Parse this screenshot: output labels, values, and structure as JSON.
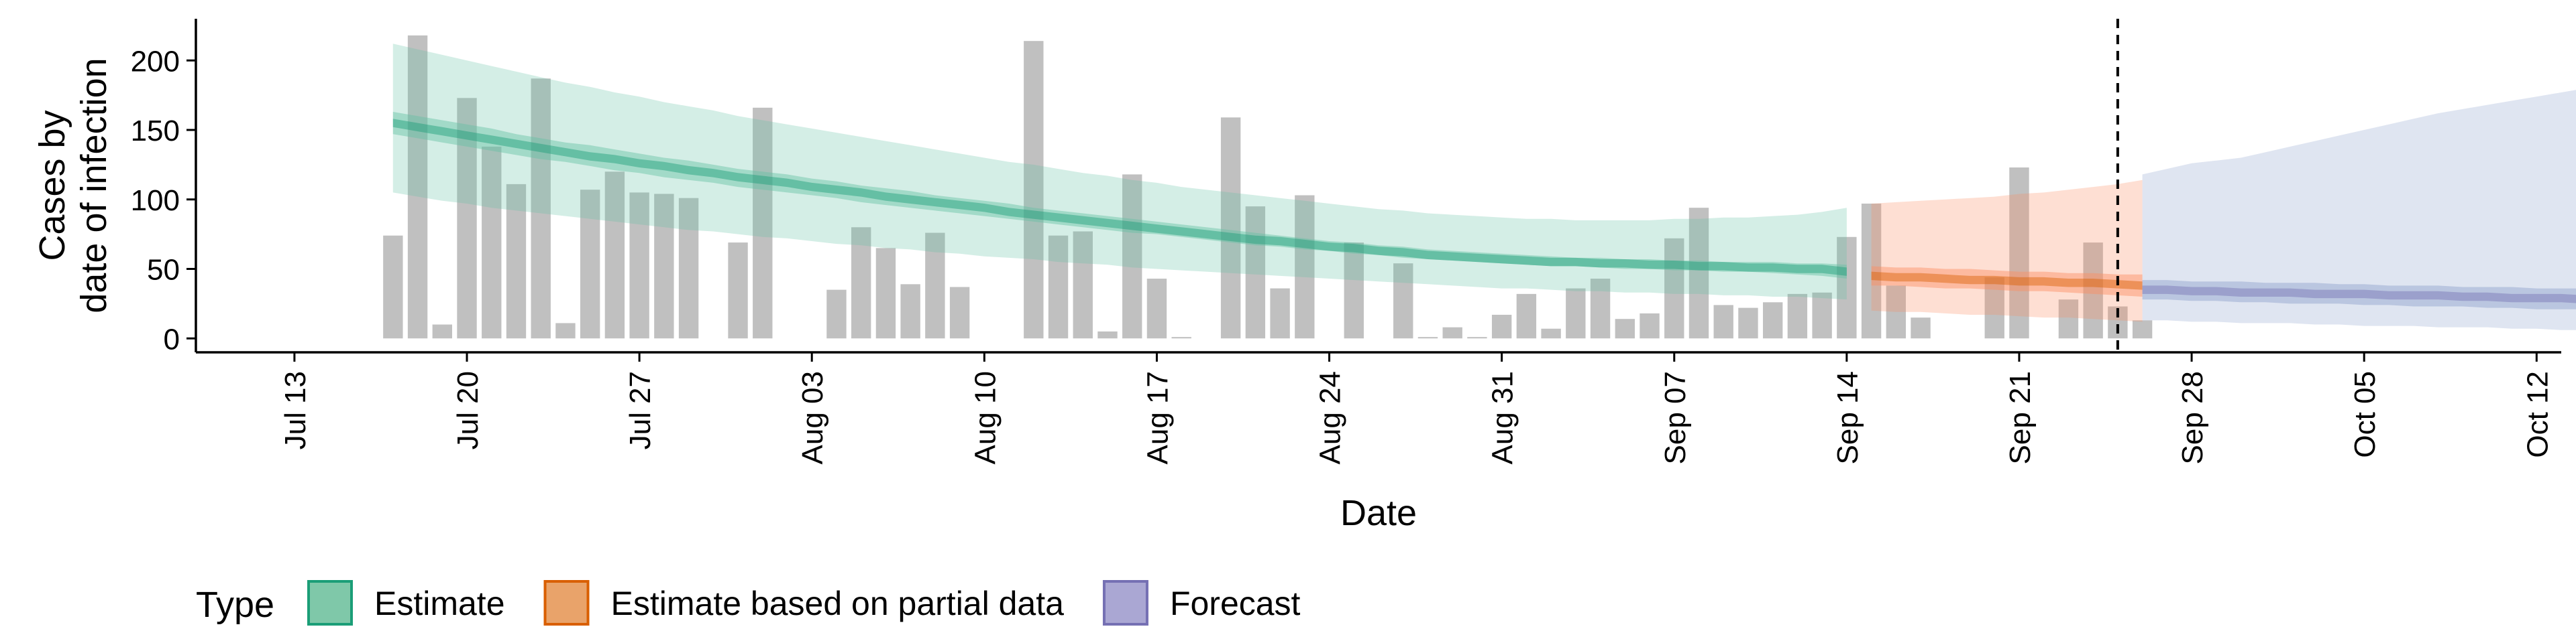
{
  "chart_data": {
    "type": "bar",
    "xlabel": "Date",
    "ylabel": [
      "Cases by",
      "date of infection"
    ],
    "ylim": [
      -10,
      230
    ],
    "y_ticks": [
      0,
      50,
      100,
      150,
      200
    ],
    "x_range": [
      "2020-07-09",
      "2020-10-13"
    ],
    "x_ticks": [
      {
        "date": "2020-07-13",
        "label": "Jul 13"
      },
      {
        "date": "2020-07-20",
        "label": "Jul 20"
      },
      {
        "date": "2020-07-27",
        "label": "Jul 27"
      },
      {
        "date": "2020-08-03",
        "label": "Aug 03"
      },
      {
        "date": "2020-08-10",
        "label": "Aug 10"
      },
      {
        "date": "2020-08-17",
        "label": "Aug 17"
      },
      {
        "date": "2020-08-24",
        "label": "Aug 24"
      },
      {
        "date": "2020-08-31",
        "label": "Aug 31"
      },
      {
        "date": "2020-09-07",
        "label": "Sep 07"
      },
      {
        "date": "2020-09-14",
        "label": "Sep 14"
      },
      {
        "date": "2020-09-21",
        "label": "Sep 21"
      },
      {
        "date": "2020-09-28",
        "label": "Sep 28"
      },
      {
        "date": "2020-10-05",
        "label": "Oct 05"
      },
      {
        "date": "2020-10-12",
        "label": "Oct 12"
      }
    ],
    "grid": false,
    "bars": {
      "start_date": "2020-07-17",
      "color": "#bdbdbd",
      "values": [
        74,
        218,
        10,
        173,
        138,
        111,
        187,
        11,
        107,
        120,
        105,
        104,
        101,
        0,
        69,
        166,
        0,
        0,
        35,
        80,
        65,
        39,
        76,
        37,
        0,
        0,
        214,
        74,
        77,
        5,
        118,
        43,
        1,
        0,
        159,
        95,
        36,
        103,
        0,
        69,
        0,
        54,
        1,
        8,
        1,
        17,
        32,
        7,
        36,
        43,
        14,
        18,
        72,
        94,
        24,
        22,
        26,
        32,
        33,
        73,
        97,
        38,
        15,
        0,
        0,
        44,
        123,
        0,
        28,
        69,
        23,
        13
      ]
    },
    "vertical_line": {
      "date": "2020-09-25",
      "style": "dashed"
    },
    "series": [
      {
        "name": "Estimate",
        "color": "#1b9e77",
        "fill": "#66c2a5",
        "start_date": "2020-07-17",
        "median": [
          155,
          152,
          149,
          146,
          143,
          140,
          137,
          134,
          131,
          129,
          126,
          124,
          121,
          119,
          116,
          114,
          112,
          109,
          107,
          105,
          102,
          100,
          98,
          96,
          94,
          91,
          89,
          87,
          85,
          83,
          81,
          79,
          77,
          75,
          73,
          71,
          70,
          68,
          66,
          65,
          63,
          62,
          60,
          59,
          58,
          57,
          56,
          55,
          55,
          54,
          54,
          53,
          53,
          52,
          52,
          51,
          51,
          50,
          50,
          48
        ],
        "inner_low": [
          147,
          144,
          141,
          138,
          135,
          132,
          129,
          127,
          124,
          121,
          119,
          116,
          114,
          112,
          109,
          107,
          105,
          103,
          101,
          98,
          96,
          94,
          92,
          90,
          88,
          86,
          84,
          82,
          80,
          78,
          76,
          75,
          73,
          71,
          69,
          67,
          66,
          64,
          63,
          61,
          60,
          58,
          57,
          56,
          55,
          54,
          53,
          52,
          52,
          51,
          50,
          50,
          49,
          49,
          48,
          48,
          47,
          46,
          45,
          43
        ],
        "inner_high": [
          163,
          160,
          157,
          154,
          151,
          147,
          144,
          141,
          139,
          136,
          133,
          130,
          128,
          125,
          122,
          120,
          118,
          115,
          113,
          110,
          108,
          106,
          103,
          101,
          99,
          97,
          94,
          92,
          90,
          88,
          86,
          84,
          82,
          80,
          78,
          76,
          74,
          72,
          70,
          69,
          67,
          66,
          64,
          63,
          62,
          61,
          60,
          59,
          58,
          58,
          57,
          57,
          56,
          56,
          55,
          55,
          55,
          54,
          54,
          53
        ],
        "outer_low": [
          105,
          102,
          99,
          97,
          94,
          92,
          90,
          88,
          86,
          84,
          82,
          80,
          78,
          77,
          75,
          73,
          72,
          70,
          68,
          67,
          65,
          64,
          62,
          61,
          59,
          58,
          57,
          55,
          54,
          53,
          51,
          50,
          49,
          48,
          47,
          46,
          45,
          44,
          43,
          42,
          41,
          40,
          39,
          38,
          37,
          36,
          36,
          35,
          34,
          34,
          33,
          33,
          32,
          32,
          31,
          31,
          30,
          30,
          29,
          28
        ],
        "outer_high": [
          212,
          208,
          204,
          200,
          196,
          192,
          188,
          184,
          181,
          177,
          174,
          170,
          167,
          164,
          160,
          157,
          154,
          151,
          148,
          145,
          142,
          139,
          136,
          133,
          130,
          127,
          125,
          122,
          119,
          117,
          114,
          112,
          109,
          107,
          105,
          103,
          101,
          99,
          97,
          95,
          93,
          92,
          90,
          89,
          88,
          87,
          86,
          86,
          85,
          85,
          85,
          85,
          86,
          86,
          87,
          87,
          88,
          89,
          91,
          94
        ]
      },
      {
        "name": "Estimate based on partial data",
        "color": "#d95f02",
        "fill": "#fc8d62",
        "start_date": "2020-09-15",
        "median": [
          45,
          44,
          44,
          43,
          42,
          42,
          41,
          41,
          40,
          40,
          39,
          38
        ],
        "inner_low": [
          38,
          38,
          37,
          36,
          36,
          35,
          34,
          34,
          33,
          32,
          31,
          30
        ],
        "inner_high": [
          52,
          51,
          51,
          50,
          50,
          49,
          48,
          48,
          47,
          47,
          46,
          46
        ],
        "outer_low": [
          20,
          19,
          19,
          18,
          17,
          17,
          16,
          15,
          15,
          14,
          13,
          12
        ],
        "outer_high": [
          97,
          98,
          99,
          100,
          101,
          102,
          104,
          105,
          107,
          109,
          111,
          114
        ]
      },
      {
        "name": "Forecast",
        "color": "#7570b3",
        "fill": "#8da0cb",
        "start_date": "2020-09-26",
        "median": [
          35,
          35,
          34,
          34,
          33,
          33,
          33,
          32,
          32,
          32,
          31,
          31,
          31,
          30,
          30,
          29,
          29,
          29,
          28,
          28,
          27,
          27
        ],
        "inner_low": [
          28,
          28,
          27,
          27,
          26,
          26,
          25,
          25,
          25,
          24,
          24,
          23,
          23,
          23,
          22,
          22,
          21,
          21,
          21,
          20,
          20,
          19
        ],
        "inner_high": [
          42,
          42,
          41,
          41,
          41,
          40,
          40,
          40,
          39,
          39,
          38,
          38,
          38,
          37,
          37,
          37,
          36,
          36,
          36,
          35,
          35,
          35
        ],
        "outer_low": [
          13,
          13,
          12,
          12,
          11,
          11,
          11,
          10,
          10,
          9,
          9,
          9,
          8,
          8,
          8,
          7,
          7,
          6,
          6,
          5,
          5,
          4
        ],
        "outer_high": [
          118,
          122,
          126,
          128,
          130,
          134,
          138,
          142,
          146,
          150,
          154,
          158,
          162,
          165,
          168,
          171,
          174,
          177,
          180,
          183,
          186,
          189
        ]
      }
    ],
    "legend": {
      "title": "Type",
      "placement": "bottom",
      "items": [
        {
          "label": "Estimate",
          "fill": "#7fc8a9",
          "border": "#1b9e77"
        },
        {
          "label": "Estimate based on partial data",
          "fill": "#e9a36a",
          "border": "#d95f02"
        },
        {
          "label": "Forecast",
          "fill": "#aaa7d3",
          "border": "#7570b3"
        }
      ]
    }
  }
}
